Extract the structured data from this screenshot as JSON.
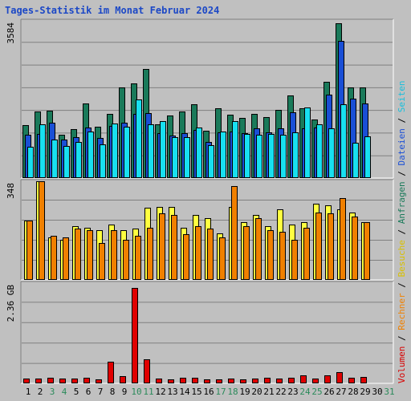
{
  "title": "Tages-Statistik im Monat Februar 2024",
  "panels": {
    "top_max_label": "3584",
    "mid_max_label": "348",
    "bot_max_label": "2.36 GB"
  },
  "right_legend": {
    "top": [
      {
        "text": "Anfragen",
        "color": "#1a7a5a"
      },
      {
        "text": "/",
        "color": "#000000"
      },
      {
        "text": "Dateien",
        "color": "#1a4fd6"
      },
      {
        "text": "/",
        "color": "#000000"
      },
      {
        "text": "Seiten",
        "color": "#18bfdc"
      }
    ],
    "bottom": [
      {
        "text": "/",
        "color": "#000000"
      },
      {
        "text": "Besuche",
        "color": "#d8c000"
      },
      {
        "text": "/",
        "color": "#000000"
      },
      {
        "text": "Rechner",
        "color": "#f08000"
      },
      {
        "text": "/",
        "color": "#000000"
      },
      {
        "text": "Volumen",
        "color": "#d80000"
      }
    ]
  },
  "colors": {
    "hits": "#1a7a5a",
    "files": "#1a4fd6",
    "pages": "#18e0f0",
    "visits": "#ffff40",
    "sites": "#f08000",
    "volume": "#e00000",
    "weekend_day": "#2a8a5a",
    "weekday": "#000000"
  },
  "chart_data": {
    "type": "bar",
    "title": "Tages-Statistik im Monat Februar 2024",
    "days": [
      "1",
      "2",
      "3",
      "4",
      "5",
      "6",
      "7",
      "8",
      "9",
      "10",
      "11",
      "12",
      "13",
      "14",
      "15",
      "16",
      "17",
      "18",
      "19",
      "20",
      "21",
      "22",
      "23",
      "24",
      "25",
      "26",
      "27",
      "28",
      "29",
      "30",
      "31"
    ],
    "weekend_days": [
      "3",
      "4",
      "10",
      "11",
      "17",
      "18",
      "24",
      "25",
      "31"
    ],
    "hits_files_pages": {
      "ymax": 3584,
      "series": [
        {
          "name": "Anfragen",
          "values": [
            1200,
            1520,
            1530,
            980,
            1110,
            1700,
            1160,
            1460,
            2060,
            2170,
            2500,
            1220,
            1420,
            1520,
            1680,
            1070,
            1580,
            1450,
            1370,
            1460,
            1390,
            1560,
            1880,
            1590,
            1330,
            2200,
            3550,
            2060,
            2060,
            0,
            0
          ]
        },
        {
          "name": "Dateien",
          "values": [
            980,
            1000,
            1250,
            860,
            920,
            1140,
            900,
            1180,
            1260,
            1460,
            1480,
            1010,
            960,
            1020,
            1090,
            820,
            1030,
            1060,
            1010,
            1130,
            1040,
            1120,
            1500,
            1130,
            1140,
            1900,
            3140,
            1810,
            1700,
            0,
            0
          ]
        },
        {
          "name": "Seiten",
          "values": [
            700,
            1220,
            860,
            720,
            810,
            1050,
            760,
            1240,
            1160,
            1800,
            1220,
            1300,
            930,
            930,
            1140,
            740,
            1050,
            1300,
            1000,
            980,
            1000,
            980,
            1040,
            1600,
            1220,
            1120,
            1690,
            800,
            950,
            0,
            0
          ]
        }
      ]
    },
    "visits_sites": {
      "ymax": 348,
      "series": [
        {
          "name": "Besuche",
          "values": [
            210,
            350,
            150,
            140,
            190,
            185,
            175,
            195,
            175,
            180,
            255,
            260,
            260,
            185,
            230,
            220,
            165,
            260,
            205,
            230,
            190,
            250,
            195,
            205,
            270,
            265,
            250,
            240,
            205,
            0,
            0
          ]
        },
        {
          "name": "Rechner",
          "values": [
            210,
            350,
            155,
            150,
            180,
            175,
            130,
            175,
            140,
            155,
            185,
            235,
            230,
            160,
            190,
            180,
            150,
            335,
            190,
            220,
            175,
            170,
            140,
            185,
            240,
            235,
            290,
            225,
            205,
            0,
            0
          ]
        }
      ]
    },
    "volume": {
      "ymax": 2.36,
      "unit": "GB",
      "series": [
        {
          "name": "Volumen",
          "values": [
            0.09,
            0.09,
            0.12,
            0.1,
            0.09,
            0.12,
            0.08,
            0.5,
            0.15,
            2.26,
            0.55,
            0.1,
            0.08,
            0.11,
            0.11,
            0.07,
            0.07,
            0.09,
            0.07,
            0.1,
            0.12,
            0.1,
            0.12,
            0.18,
            0.1,
            0.18,
            0.25,
            0.12,
            0.13,
            0,
            0
          ]
        }
      ]
    }
  }
}
